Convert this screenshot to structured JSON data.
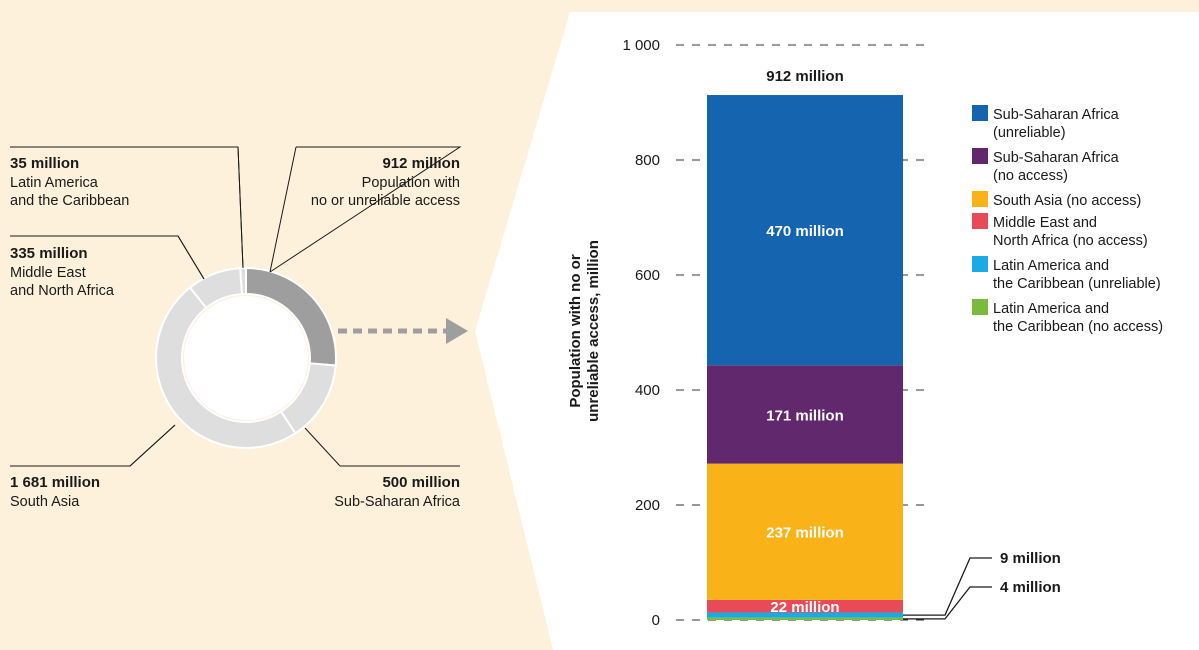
{
  "colors": {
    "background": "#fdf1dc",
    "panel": "#ffffff",
    "donut_highlight": "#9e9e9e",
    "donut_muted": "#dedede",
    "arrow": "#9e9e9e",
    "unserved_ssa_unreliable": "#1564b0",
    "unserved_ssa_no_access": "#62286e",
    "unserved_south_asia": "#fab219",
    "unserved_mena": "#e84a58",
    "unserved_lac_unreliable": "#1aabe3",
    "unserved_lac_no_access": "#7cba3d"
  },
  "chart_data": [
    {
      "type": "pie",
      "variant": "donut",
      "slices": [
        {
          "key": "unserved",
          "value": 912,
          "value_label": "912 million",
          "label": "Population with\nno or unreliable access",
          "highlight": true
        },
        {
          "key": "ssa",
          "value": 500,
          "value_label": "500 million",
          "label": "Sub-Saharan Africa",
          "highlight": false
        },
        {
          "key": "sa",
          "value": 1681,
          "value_label": "1 681 million",
          "label": "South Asia",
          "highlight": false
        },
        {
          "key": "mena",
          "value": 335,
          "value_label": "335 million",
          "label": "Middle East\nand North Africa",
          "highlight": false
        },
        {
          "key": "lac",
          "value": 35,
          "value_label": "35 million",
          "label": "Latin America\nand the Caribbean",
          "highlight": false
        }
      ]
    },
    {
      "type": "bar",
      "variant": "stacked",
      "total_label": "912 million",
      "ylabel": "Population with no or\nunreliable access, million",
      "ylim": [
        0,
        1000
      ],
      "yticks": [
        0,
        200,
        400,
        600,
        800,
        1000
      ],
      "ytick_labels": [
        "0",
        "200",
        "400",
        "600",
        "800",
        "1 000"
      ],
      "grid": "dashed",
      "legend_position": "right",
      "series": [
        {
          "name": "Latin America and\nthe Caribbean (no access)",
          "value": 4,
          "value_label": "4 million",
          "label_style": "callout",
          "color_key": "unserved_lac_no_access"
        },
        {
          "name": "Latin America and\nthe Caribbean (unreliable)",
          "value": 9,
          "value_label": "9 million",
          "label_style": "callout",
          "color_key": "unserved_lac_unreliable"
        },
        {
          "name": "Middle East and\nNorth Africa (no access)",
          "value": 22,
          "value_label": "22 million",
          "label_style": "inside",
          "color_key": "unserved_mena"
        },
        {
          "name": "South Asia (no access)",
          "value": 237,
          "value_label": "237 million",
          "label_style": "inside",
          "color_key": "unserved_south_asia"
        },
        {
          "name": "Sub-Saharan Africa\n(no access)",
          "value": 171,
          "value_label": "171 million",
          "label_style": "inside",
          "color_key": "unserved_ssa_no_access"
        },
        {
          "name": "Sub-Saharan Africa\n(unreliable)",
          "value": 470,
          "value_label": "470 million",
          "label_style": "inside",
          "color_key": "unserved_ssa_unreliable"
        }
      ],
      "legend_order": [
        "Sub-Saharan Africa\n(unreliable)",
        "Sub-Saharan Africa\n(no access)",
        "South Asia (no access)",
        "Middle East and\nNorth Africa (no access)",
        "Latin America and\nthe Caribbean (unreliable)",
        "Latin America and\nthe Caribbean (no access)"
      ]
    }
  ]
}
